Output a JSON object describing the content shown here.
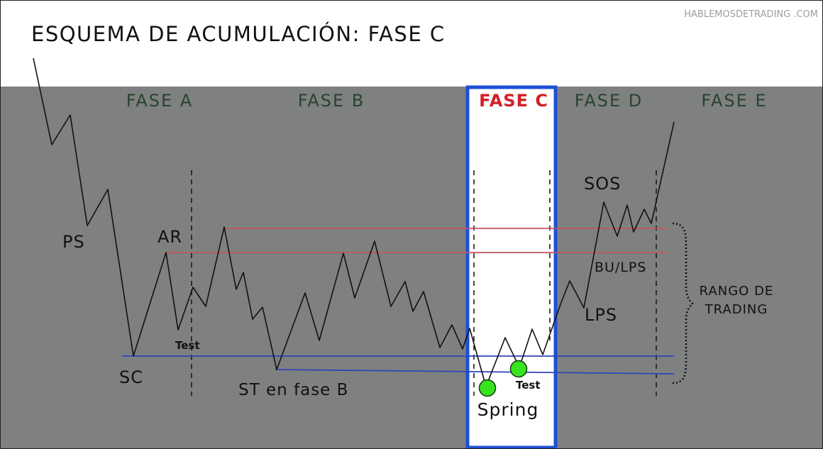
{
  "header": {
    "title": "ESQUEMA DE ACUMULACIÓN: FASE C",
    "watermark": "HABLEMOSDETRADING .COM"
  },
  "phases": {
    "a": "FASE A",
    "b": "FASE B",
    "c": "FASE C",
    "d": "FASE D",
    "e": "FASE E"
  },
  "labels": {
    "ps": "PS",
    "ar": "AR",
    "sc": "SC",
    "test_a": "Test",
    "st": "ST en fase B",
    "spring": "Spring",
    "test_c": "Test",
    "sos": "SOS",
    "bu_lps": "BU/LPS",
    "lps": "LPS",
    "range_line1": "RANGO DE",
    "range_line2": "TRADING"
  },
  "colors": {
    "background_panel": "#7f8180",
    "phase_green": "#28442d",
    "phase_highlight": "#d21f26",
    "highlight_box": "#1f4fd8",
    "resistance_lines": "#c2545e",
    "support_lines": "#2f45b8",
    "price_line": "#111111",
    "marker": "#37e41e",
    "label_text": "#111111"
  }
}
